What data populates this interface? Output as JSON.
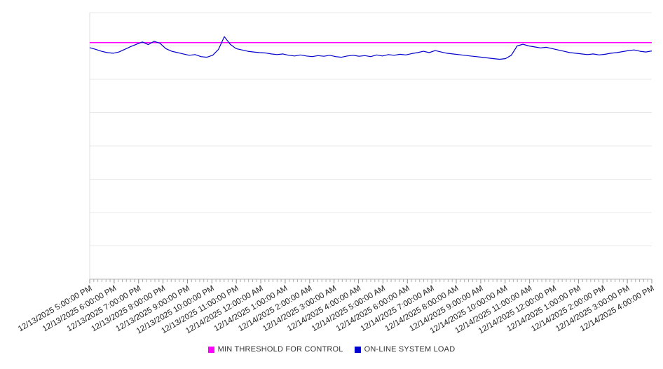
{
  "chart_data": {
    "type": "line",
    "title": "",
    "xlabel": "",
    "ylabel": "",
    "grid": "horizontal",
    "legend_position": "bottom",
    "y_axis_tick_labels_visible": false,
    "ylim": [
      0,
      8
    ],
    "y_grid_step": 1,
    "x_minor_ticks_per_interval": 6,
    "x_tick_labels": [
      "12/13/2025 5:00:00 PM",
      "12/13/2025 6:00:00 PM",
      "12/13/2025 7:00:00 PM",
      "12/13/2025 8:00:00 PM",
      "12/13/2025 9:00:00 PM",
      "12/13/2025 10:00:00 PM",
      "12/13/2025 11:00:00 PM",
      "12/14/2025 12:00:00 AM",
      "12/14/2025 1:00:00 AM",
      "12/14/2025 2:00:00 AM",
      "12/14/2025 3:00:00 AM",
      "12/14/2025 4:00:00 AM",
      "12/14/2025 5:00:00 AM",
      "12/14/2025 6:00:00 AM",
      "12/14/2025 7:00:00 AM",
      "12/14/2025 8:00:00 AM",
      "12/14/2025 9:00:00 AM",
      "12/14/2025 10:00:00 AM",
      "12/14/2025 11:00:00 AM",
      "12/14/2025 12:00:00 PM",
      "12/14/2025 1:00:00 PM",
      "12/14/2025 2:00:00 PM",
      "12/14/2025 3:00:00 PM",
      "12/14/2025 4:00:00 PM"
    ],
    "series": [
      {
        "name": "MIN THRESHOLD FOR CONTROL",
        "type": "threshold",
        "color": "#ff00ff",
        "value": 7.1
      },
      {
        "name": "ON-LINE SYSTEM LOAD",
        "type": "line",
        "color": "#0000cc",
        "values": [
          6.95,
          6.9,
          6.84,
          6.8,
          6.78,
          6.82,
          6.9,
          6.98,
          7.05,
          7.12,
          7.04,
          7.14,
          7.08,
          6.92,
          6.84,
          6.8,
          6.76,
          6.72,
          6.74,
          6.68,
          6.66,
          6.72,
          6.9,
          7.28,
          7.05,
          6.92,
          6.88,
          6.84,
          6.82,
          6.8,
          6.79,
          6.76,
          6.74,
          6.76,
          6.72,
          6.7,
          6.73,
          6.7,
          6.68,
          6.71,
          6.69,
          6.72,
          6.68,
          6.66,
          6.7,
          6.72,
          6.69,
          6.71,
          6.68,
          6.73,
          6.7,
          6.74,
          6.72,
          6.75,
          6.73,
          6.77,
          6.8,
          6.84,
          6.8,
          6.86,
          6.82,
          6.78,
          6.76,
          6.74,
          6.72,
          6.7,
          6.68,
          6.66,
          6.64,
          6.62,
          6.6,
          6.62,
          6.72,
          7.0,
          7.05,
          7.0,
          6.97,
          6.94,
          6.96,
          6.92,
          6.88,
          6.84,
          6.8,
          6.78,
          6.76,
          6.74,
          6.76,
          6.73,
          6.75,
          6.78,
          6.8,
          6.83,
          6.86,
          6.88,
          6.84,
          6.82,
          6.85
        ]
      }
    ]
  }
}
